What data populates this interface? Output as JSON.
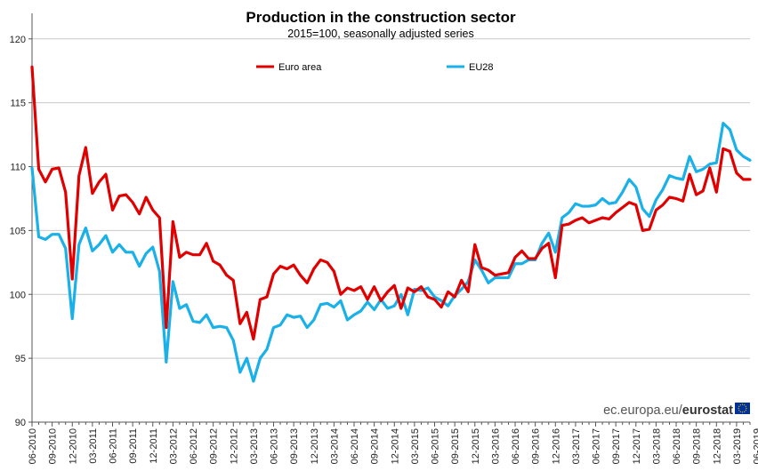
{
  "chart_data": {
    "type": "line",
    "title": "Production in the construction sector",
    "subtitle": "2015=100, seasonally adjusted series",
    "xlabel": "",
    "ylabel": "",
    "ylim": [
      90,
      122
    ],
    "yticks": [
      90,
      95,
      100,
      105,
      110,
      115,
      120
    ],
    "grid": true,
    "legend_position": "top",
    "x_start": "06-2010",
    "x_tick_labels": [
      "06-2010",
      "09-2010",
      "12-2010",
      "03-2011",
      "06-2011",
      "09-2011",
      "12-2011",
      "03-2012",
      "06-2012",
      "09-2012",
      "12-2012",
      "03-2013",
      "06-2013",
      "09-2013",
      "12-2013",
      "03-2014",
      "06-2014",
      "09-2014",
      "12-2014",
      "03-2015",
      "06-2015",
      "09-2015",
      "12-2015",
      "03-2016",
      "06-2016",
      "09-2016",
      "12-2016",
      "03-2017",
      "06-2017",
      "09-2017",
      "12-2017",
      "03-2018",
      "06-2018",
      "09-2018",
      "12-2018",
      "03-2019",
      "06-2019"
    ],
    "series": [
      {
        "name": "Euro area",
        "color": "#e00000",
        "values": [
          117.8,
          109.8,
          108.8,
          109.8,
          109.9,
          108.0,
          101.2,
          109.3,
          111.5,
          107.9,
          108.8,
          109.4,
          106.6,
          107.7,
          107.8,
          107.2,
          106.3,
          107.6,
          106.6,
          106.0,
          97.4,
          105.7,
          102.9,
          103.3,
          103.1,
          103.1,
          104.0,
          102.6,
          102.3,
          101.5,
          101.1,
          97.7,
          98.6,
          96.5,
          99.6,
          99.8,
          101.6,
          102.2,
          102.0,
          102.3,
          101.5,
          100.9,
          102.0,
          102.7,
          102.5,
          101.8,
          100.0,
          100.5,
          100.3,
          100.6,
          99.6,
          100.6,
          99.5,
          100.2,
          100.7,
          98.9,
          100.5,
          100.2,
          100.6,
          99.8,
          99.6,
          99.0,
          100.2,
          99.8,
          101.1,
          100.2,
          103.9,
          102.1,
          101.9,
          101.5,
          101.6,
          101.7,
          102.9,
          103.4,
          102.8,
          102.8,
          103.6,
          104.0,
          101.3,
          105.4,
          105.5,
          105.8,
          106.0,
          105.6,
          105.8,
          106.0,
          105.9,
          106.4,
          106.8,
          107.2,
          107.0,
          105.0,
          105.1,
          106.6,
          107.0,
          107.6,
          107.5,
          107.3,
          109.4,
          107.8,
          108.1,
          109.9,
          108.0,
          111.4,
          111.2,
          109.5,
          109.0,
          109.0
        ]
      },
      {
        "name": "EU28",
        "color": "#1ab0e8",
        "values": [
          109.9,
          104.5,
          104.3,
          104.7,
          104.7,
          103.6,
          98.1,
          103.9,
          105.2,
          103.4,
          103.9,
          104.6,
          103.3,
          103.9,
          103.3,
          103.3,
          102.2,
          103.2,
          103.7,
          101.8,
          94.7,
          101.0,
          98.9,
          99.2,
          97.9,
          97.8,
          98.4,
          97.4,
          97.5,
          97.4,
          96.4,
          93.9,
          95.0,
          93.2,
          95.0,
          95.7,
          97.4,
          97.6,
          98.4,
          98.2,
          98.3,
          97.4,
          98.0,
          99.2,
          99.3,
          99.0,
          99.5,
          98.0,
          98.4,
          98.7,
          99.4,
          98.8,
          99.6,
          98.9,
          99.1,
          100.0,
          98.4,
          100.4,
          100.3,
          100.5,
          99.8,
          99.5,
          99.1,
          99.9,
          100.4,
          101.0,
          102.7,
          101.9,
          100.9,
          101.3,
          101.3,
          101.3,
          102.4,
          102.4,
          102.7,
          102.7,
          104.0,
          104.8,
          103.3,
          106.0,
          106.4,
          107.1,
          106.9,
          106.9,
          107.0,
          107.5,
          107.1,
          107.2,
          108.0,
          109.0,
          108.4,
          106.7,
          106.1,
          107.4,
          108.2,
          109.3,
          109.1,
          109.0,
          110.8,
          109.6,
          109.8,
          110.2,
          110.3,
          113.4,
          112.9,
          111.3,
          110.8,
          110.5
        ]
      }
    ]
  },
  "source": {
    "prefix": "ec.europa.eu/",
    "brand": "eurostat"
  },
  "logo": {
    "name": "eu-flag-logo",
    "color": "#003399"
  }
}
